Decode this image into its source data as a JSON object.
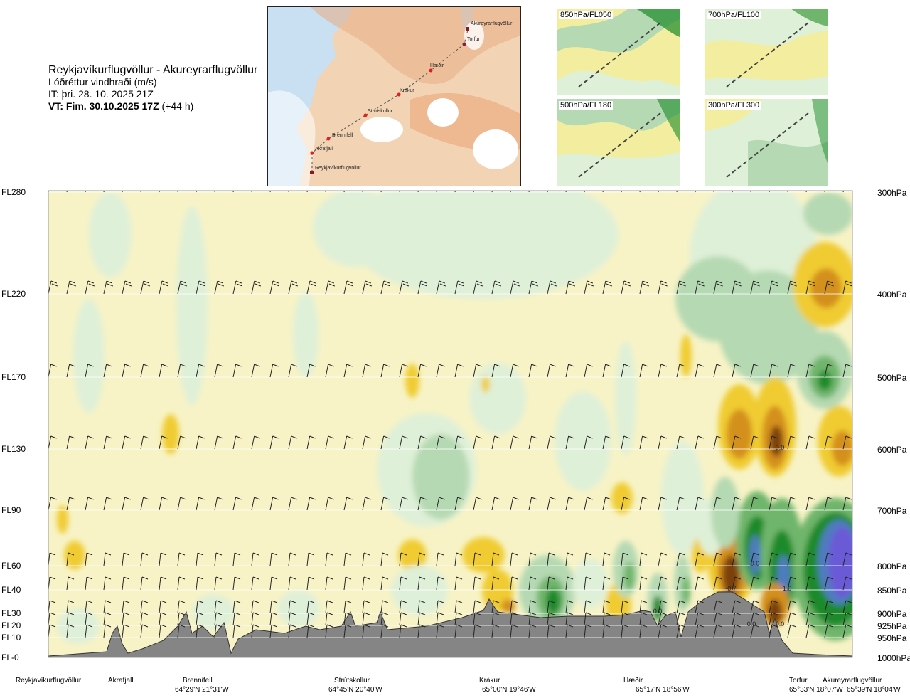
{
  "header": {
    "route": "Reykjavíkurflugvöllur - Akureyrarflugvöllur",
    "parameter": "Lóðréttur vindhraði (m/s)",
    "issue_time": "IT: þri. 28. 10. 2025 21Z",
    "valid_time": "VT: Fim. 30.10.2025 17Z",
    "lead_time": "(+44 h)"
  },
  "route_map": {
    "waypoints": [
      "Akureyrarflugvöllur",
      "Torfur",
      "Hæðir",
      "Krákur",
      "Strútskollur",
      "Brennifell",
      "Akrafjall",
      "Reykjavíkurflugvöllur"
    ]
  },
  "level_maps": [
    {
      "label": "850hPa/FL050"
    },
    {
      "label": "700hPa/FL100"
    },
    {
      "label": "500hPa/FL180"
    },
    {
      "label": "300hPa/FL300"
    }
  ],
  "chart_data": {
    "type": "heatmap",
    "title": "Lóðréttur vindhraði (m/s)",
    "y_left_ticks": [
      "FL280",
      "FL220",
      "FL170",
      "FL130",
      "FL90",
      "FL60",
      "FL40",
      "FL30",
      "FL20",
      "FL10",
      "FL-0"
    ],
    "y_right_ticks": [
      "300hPa",
      "400hPa",
      "500hPa",
      "600hPa",
      "700hPa",
      "800hPa",
      "850hPa",
      "900hPa",
      "925hPa",
      "950hPa",
      "1000hPa"
    ],
    "pressure_levels": [
      300,
      400,
      500,
      600,
      700,
      800,
      850,
      900,
      925,
      950,
      1000
    ],
    "x_locations": [
      {
        "name": "Reykjavíkurflugvöllur",
        "coord": ""
      },
      {
        "name": "Akrafjall",
        "coord": ""
      },
      {
        "name": "Brennifell",
        "coord": "64°29'N 21°31'W"
      },
      {
        "name": "Strútskollur",
        "coord": "64°45'N 20°40'W"
      },
      {
        "name": "Krákur",
        "coord": "65°00'N 19°46'W"
      },
      {
        "name": "Hæðir",
        "coord": "65°17'N 18°56'W"
      },
      {
        "name": "Torfur",
        "coord": "65°33'N 18°07'W"
      },
      {
        "name": "Akureyrarflugvöllur",
        "coord": "65°39'N 18°04'W"
      }
    ],
    "annotations": [
      "0.0",
      "-0.7",
      "0.0",
      "1.0",
      "0.0",
      "0.0",
      "0.0"
    ],
    "colors": {
      "strong_down": "#7b3f10",
      "down": "#d4901c",
      "weak_down": "#f0cc30",
      "slight_down": "#f3ee9f",
      "neutral": "#f7f3c6",
      "slight_up": "#dff0d8",
      "weak_up": "#b5d9b2",
      "up": "#6fb56c",
      "strong_up": "#1a8a2a",
      "very_strong_up": "#4f7bbf",
      "extreme_up": "#6a5ad6",
      "terrain": "#858585"
    }
  }
}
